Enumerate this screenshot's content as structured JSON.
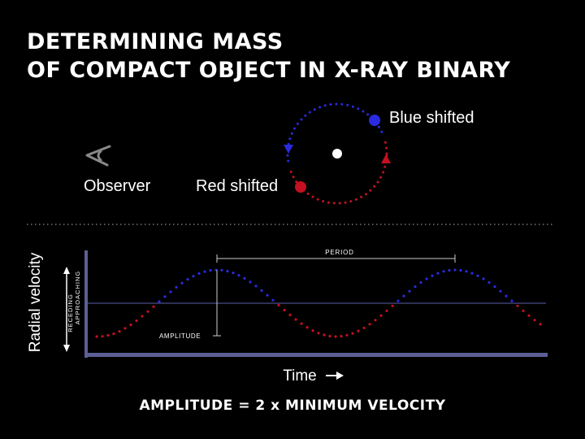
{
  "title": {
    "line1": "DETERMINING MASS",
    "line2": "OF COMPACT OBJECT IN X-RAY BINARY"
  },
  "orbit": {
    "blue_label": "Blue shifted",
    "red_label": "Red shifted",
    "observer_label": "Observer",
    "observer_icon": "eye-icon"
  },
  "graph": {
    "ylabel": "Radial velocity",
    "approaching_label": "APPROACHING",
    "receding_label": "RECEDING",
    "xlabel": "Time",
    "period_label": "PERIOD",
    "amplitude_label": "AMPLITUDE"
  },
  "formula": "AMPLITUDE = 2 x MINIMUM VELOCITY",
  "colors": {
    "blue": "#2a2ae0",
    "red": "#c41020",
    "axis": "#5b5f94",
    "baseline": "#4a4d8a"
  }
}
